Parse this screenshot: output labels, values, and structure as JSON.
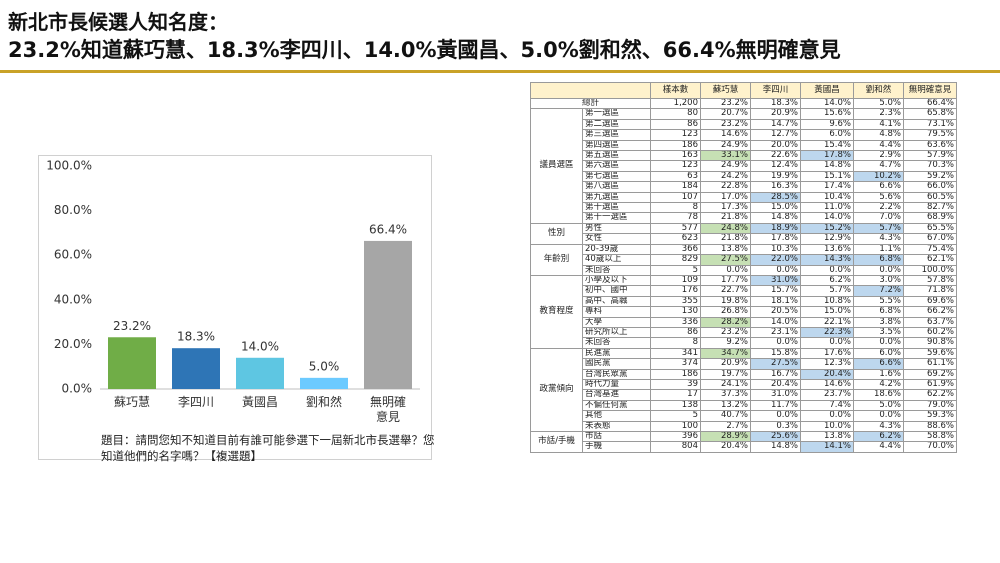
{
  "header": {
    "title": "新北市長候選人知名度：",
    "subtitle": "23.2%知道蘇巧慧、18.3%李四川、14.0%黃國昌、5.0%劉和然、66.4%無明確意見"
  },
  "chart_data": {
    "type": "bar",
    "categories": [
      "蘇巧慧",
      "李四川",
      "黃國昌",
      "劉和然",
      "無明確意見"
    ],
    "values": [
      23.2,
      18.3,
      14.0,
      5.0,
      66.4
    ],
    "value_labels": [
      "23.2%",
      "18.3%",
      "14.0%",
      "5.0%",
      "66.4%"
    ],
    "colors": [
      "#70ad47",
      "#2e75b6",
      "#5ec6e2",
      "#6ccaff",
      "#a6a6a6"
    ],
    "ylim": [
      0,
      100
    ],
    "yticks": [
      {
        "value": 0,
        "label": "0.0%"
      },
      {
        "value": 20,
        "label": "20.0%"
      },
      {
        "value": 40,
        "label": "40.0%"
      },
      {
        "value": 60,
        "label": "60.0%"
      },
      {
        "value": 80,
        "label": "80.0%"
      },
      {
        "value": 100,
        "label": "100.0%"
      }
    ],
    "note": "題目：請問您知不知道目前有誰可能參選下一屆新北市長選舉？您知道他們的名字嗎？【複選題】"
  },
  "table": {
    "columns": [
      "樣本數",
      "蘇巧慧",
      "李四川",
      "黃國昌",
      "劉和然",
      "無明確意見"
    ],
    "highlight_colors": {
      "g": "#c6e0b4",
      "b": "#bdd7ee"
    },
    "total": {
      "label": "總計",
      "cells": [
        "1,200",
        "23.2%",
        "18.3%",
        "14.0%",
        "5.0%",
        "66.4%"
      ]
    },
    "groups": [
      {
        "name": "議員選區",
        "rows": [
          {
            "label": "第一選區",
            "cells": [
              "80",
              "20.7%",
              "20.9%",
              "15.6%",
              "2.3%",
              "65.8%"
            ]
          },
          {
            "label": "第二選區",
            "cells": [
              "86",
              "23.2%",
              "14.7%",
              "9.6%",
              "4.1%",
              "73.1%"
            ]
          },
          {
            "label": "第三選區",
            "cells": [
              "123",
              "14.6%",
              "12.7%",
              "6.0%",
              "4.8%",
              "79.5%"
            ]
          },
          {
            "label": "第四選區",
            "cells": [
              "186",
              "24.9%",
              "20.0%",
              "15.4%",
              "4.4%",
              "63.6%"
            ]
          },
          {
            "label": "第五選區",
            "cells": [
              "163",
              "33.1%",
              "22.6%",
              "17.8%",
              "2.9%",
              "57.9%"
            ],
            "hl": {
              "g": [
                1
              ],
              "b": [
                3
              ]
            }
          },
          {
            "label": "第六選區",
            "cells": [
              "123",
              "24.9%",
              "12.4%",
              "14.8%",
              "4.7%",
              "70.3%"
            ]
          },
          {
            "label": "第七選區",
            "cells": [
              "63",
              "24.2%",
              "19.9%",
              "15.1%",
              "10.2%",
              "59.2%"
            ],
            "hl": {
              "b": [
                4
              ]
            }
          },
          {
            "label": "第八選區",
            "cells": [
              "184",
              "22.8%",
              "16.3%",
              "17.4%",
              "6.6%",
              "66.0%"
            ]
          },
          {
            "label": "第九選區",
            "cells": [
              "107",
              "17.0%",
              "28.5%",
              "10.4%",
              "5.6%",
              "60.5%"
            ],
            "hl": {
              "b": [
                2
              ]
            }
          },
          {
            "label": "第十選區",
            "cells": [
              "8",
              "17.3%",
              "15.0%",
              "11.0%",
              "2.2%",
              "82.7%"
            ]
          },
          {
            "label": "第十一選區",
            "cells": [
              "78",
              "21.8%",
              "14.8%",
              "14.0%",
              "7.0%",
              "68.9%"
            ]
          }
        ]
      },
      {
        "name": "性別",
        "rows": [
          {
            "label": "男性",
            "cells": [
              "577",
              "24.8%",
              "18.9%",
              "15.2%",
              "5.7%",
              "65.5%"
            ],
            "hl": {
              "g": [
                1
              ],
              "b": [
                2,
                3,
                4
              ]
            }
          },
          {
            "label": "女性",
            "cells": [
              "623",
              "21.8%",
              "17.8%",
              "12.9%",
              "4.3%",
              "67.0%"
            ]
          }
        ]
      },
      {
        "name": "年齡別",
        "rows": [
          {
            "label": "20-39歲",
            "cells": [
              "366",
              "13.8%",
              "10.3%",
              "13.6%",
              "1.1%",
              "75.4%"
            ]
          },
          {
            "label": "40歲以上",
            "cells": [
              "829",
              "27.5%",
              "22.0%",
              "14.3%",
              "6.8%",
              "62.1%"
            ],
            "hl": {
              "g": [
                1
              ],
              "b": [
                2,
                3,
                4
              ]
            }
          },
          {
            "label": "未回答",
            "cells": [
              "5",
              "0.0%",
              "0.0%",
              "0.0%",
              "0.0%",
              "100.0%"
            ]
          }
        ]
      },
      {
        "name": "教育程度",
        "rows": [
          {
            "label": "小學及以下",
            "cells": [
              "109",
              "17.7%",
              "31.0%",
              "6.2%",
              "3.0%",
              "57.8%"
            ],
            "hl": {
              "b": [
                2
              ]
            }
          },
          {
            "label": "初中、國中",
            "cells": [
              "176",
              "22.7%",
              "15.7%",
              "5.7%",
              "7.2%",
              "71.8%"
            ],
            "hl": {
              "b": [
                4
              ]
            }
          },
          {
            "label": "高中、高職",
            "cells": [
              "355",
              "19.8%",
              "18.1%",
              "10.8%",
              "5.5%",
              "69.6%"
            ]
          },
          {
            "label": "專科",
            "cells": [
              "130",
              "26.8%",
              "20.5%",
              "15.0%",
              "6.8%",
              "66.2%"
            ]
          },
          {
            "label": "大學",
            "cells": [
              "336",
              "28.2%",
              "14.0%",
              "22.1%",
              "3.8%",
              "63.7%"
            ],
            "hl": {
              "g": [
                1
              ]
            }
          },
          {
            "label": "研究所以上",
            "cells": [
              "86",
              "23.2%",
              "23.1%",
              "22.3%",
              "3.5%",
              "60.2%"
            ],
            "hl": {
              "b": [
                3
              ]
            }
          },
          {
            "label": "未回答",
            "cells": [
              "8",
              "9.2%",
              "0.0%",
              "0.0%",
              "0.0%",
              "90.8%"
            ]
          }
        ]
      },
      {
        "name": "政黨傾向",
        "rows": [
          {
            "label": "民進黨",
            "cells": [
              "341",
              "34.7%",
              "15.8%",
              "17.6%",
              "6.0%",
              "59.6%"
            ],
            "hl": {
              "g": [
                1
              ]
            }
          },
          {
            "label": "國民黨",
            "cells": [
              "374",
              "20.9%",
              "27.5%",
              "12.3%",
              "6.6%",
              "61.1%"
            ],
            "hl": {
              "b": [
                2,
                4
              ]
            }
          },
          {
            "label": "台灣民眾黨",
            "cells": [
              "186",
              "19.7%",
              "16.7%",
              "20.4%",
              "1.6%",
              "69.2%"
            ],
            "hl": {
              "b": [
                3
              ]
            }
          },
          {
            "label": "時代力量",
            "cells": [
              "39",
              "24.1%",
              "20.4%",
              "14.6%",
              "4.2%",
              "61.9%"
            ]
          },
          {
            "label": "台灣基進",
            "cells": [
              "17",
              "37.3%",
              "31.0%",
              "23.7%",
              "18.6%",
              "62.2%"
            ]
          },
          {
            "label": "不偏任何黨",
            "cells": [
              "138",
              "13.2%",
              "11.7%",
              "7.4%",
              "5.0%",
              "79.0%"
            ]
          },
          {
            "label": "其他",
            "cells": [
              "5",
              "40.7%",
              "0.0%",
              "0.0%",
              "0.0%",
              "59.3%"
            ]
          },
          {
            "label": "未表態",
            "cells": [
              "100",
              "2.7%",
              "0.3%",
              "10.0%",
              "4.3%",
              "88.6%"
            ]
          }
        ]
      },
      {
        "name": "市話/手機",
        "rows": [
          {
            "label": "市話",
            "cells": [
              "396",
              "28.9%",
              "25.6%",
              "13.8%",
              "6.2%",
              "58.8%"
            ],
            "hl": {
              "g": [
                1
              ],
              "b": [
                2,
                4
              ]
            }
          },
          {
            "label": "手機",
            "cells": [
              "804",
              "20.4%",
              "14.8%",
              "14.1%",
              "4.4%",
              "70.0%"
            ],
            "hl": {
              "b": [
                3
              ]
            }
          }
        ]
      }
    ]
  }
}
